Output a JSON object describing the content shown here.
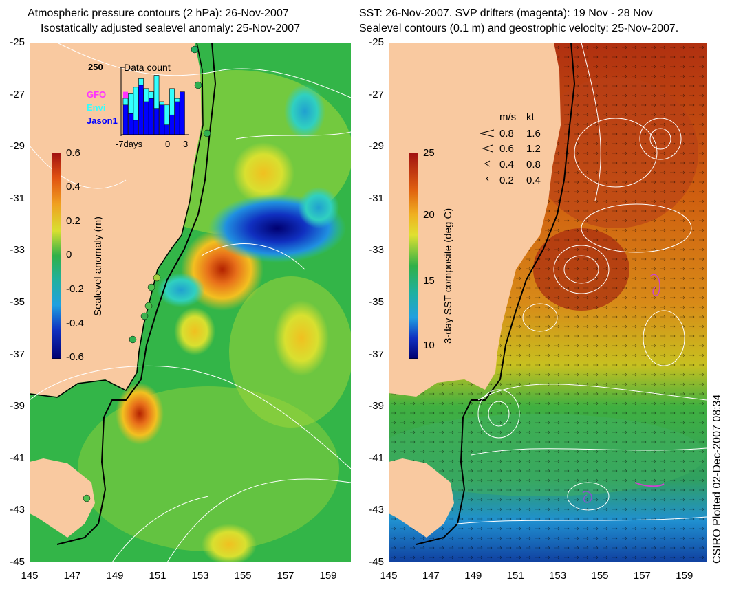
{
  "left_panel": {
    "title_line1": "Atmospheric pressure contours (2 hPa): 26-Nov-2007",
    "title_line2": "Isostatically adjusted sealevel anomaly: 25-Nov-2007",
    "colorbar_label": "Sealevel anomaly (m)",
    "colorbar_ticks": [
      "0.6",
      "0.4",
      "0.2",
      "0",
      "-0.2",
      "-0.4",
      "-0.6"
    ],
    "inset": {
      "max_label": "250",
      "title": "Data count",
      "legend": [
        {
          "label": "GFO",
          "color": "#ff33ff"
        },
        {
          "label": "Envi",
          "color": "#33ffff"
        },
        {
          "label": "Jason1",
          "color": "#0000ff"
        }
      ],
      "x_labels": [
        "-7days",
        "0",
        "3"
      ],
      "bar_values": [
        0.55,
        0.62,
        0.72,
        0.85,
        0.7,
        0.65,
        0.9,
        0.5,
        0.45,
        0.7,
        0.55,
        0.65
      ],
      "envi_values": [
        0.1,
        0.3,
        0.5,
        0.1,
        0.2,
        0.1,
        0.5,
        0.05,
        0.3,
        0.4,
        0.05,
        0.0
      ],
      "gfo_values": [
        0.1,
        0.0,
        0.0,
        0.0,
        0.0,
        0.0,
        0.0,
        0.0,
        0.0,
        0.0,
        0.0,
        0.0
      ]
    }
  },
  "right_panel": {
    "title_line1": "SST: 26-Nov-2007. SVP drifters (magenta): 19 Nov - 28 Nov",
    "title_line2": "Sealevel contours (0.1 m) and geostrophic velocity: 25-Nov-2007.",
    "colorbar_label": "3-day SST composite (deg C)",
    "colorbar_ticks": [
      "25",
      "20",
      "15",
      "10"
    ],
    "speed_legend": {
      "header_ms": "m/s",
      "header_kt": "kt",
      "rows": [
        {
          "ms": "0.8",
          "kt": "1.6"
        },
        {
          "ms": "0.6",
          "kt": "1.2"
        },
        {
          "ms": "0.4",
          "kt": "0.8"
        },
        {
          "ms": "0.2",
          "kt": "0.4"
        }
      ]
    }
  },
  "axes": {
    "y_labels": [
      "-25",
      "-27",
      "-29",
      "-31",
      "-33",
      "-35",
      "-37",
      "-39",
      "-41",
      "-43",
      "-45"
    ],
    "x_labels": [
      "145",
      "147",
      "149",
      "151",
      "153",
      "155",
      "157",
      "159"
    ]
  },
  "footer": {
    "plotted_label": "CSIRO Plotted 02-Dec-2007 08:34"
  },
  "colors": {
    "land": "#f9c9a0",
    "ocean_mid": "#33bb44",
    "high": "#cc3300",
    "low": "#000088"
  }
}
